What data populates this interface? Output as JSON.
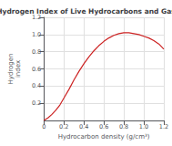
{
  "chart_data": {
    "type": "line",
    "title": "Hydrogen Index of Live Hydrocarbons and Gas",
    "x_label": "Hydrocarbon density (g/cm³)",
    "y_label": "Hydrogen\nindex",
    "x": [
      0.0,
      0.04,
      0.08,
      0.12,
      0.16,
      0.2,
      0.25,
      0.3,
      0.35,
      0.4,
      0.45,
      0.5,
      0.55,
      0.6,
      0.65,
      0.7,
      0.75,
      0.8,
      0.85,
      0.9,
      0.95,
      1.0,
      1.05,
      1.1,
      1.15,
      1.2
    ],
    "values": [
      0.0,
      0.03,
      0.07,
      0.12,
      0.18,
      0.26,
      0.36,
      0.47,
      0.57,
      0.66,
      0.74,
      0.81,
      0.87,
      0.92,
      0.96,
      0.99,
      1.01,
      1.02,
      1.02,
      1.01,
      1.0,
      0.98,
      0.96,
      0.93,
      0.89,
      0.83
    ],
    "color": "#cc2222",
    "xlim": [
      0,
      1.2
    ],
    "ylim": [
      0,
      1.2
    ],
    "xticks": [
      0,
      0.2,
      0.4,
      0.6,
      0.8,
      {
        "value": 1,
        "label": "1.0"
      },
      1.2
    ],
    "yticks": [
      0.2,
      0.4,
      0.6,
      0.8,
      {
        "value": 1,
        "label": "1.0"
      },
      1.2
    ],
    "grid": true
  }
}
